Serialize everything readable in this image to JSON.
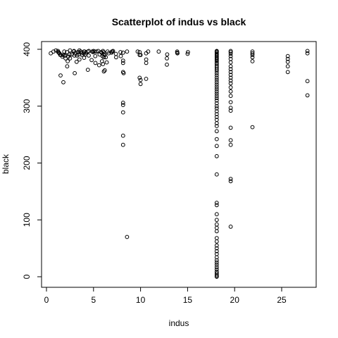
{
  "chart_data": {
    "type": "scatter",
    "title": "Scatterplot of indus vs black",
    "xlabel": "indus",
    "ylabel": "black",
    "xlim": [
      0,
      28
    ],
    "ylim": [
      0,
      400
    ],
    "x_ticks": [
      0,
      5,
      10,
      15,
      20,
      25
    ],
    "y_ticks": [
      0,
      100,
      200,
      300,
      400
    ],
    "grid": false,
    "marker": "open-circle",
    "point_color": "#000000",
    "series": [
      {
        "points": [
          [
            0.46,
            393
          ],
          [
            0.74,
            396
          ],
          [
            1.22,
            397
          ],
          [
            1.25,
            395
          ],
          [
            1.38,
            393
          ],
          [
            1.47,
            390
          ],
          [
            1.52,
            390
          ],
          [
            1.69,
            387
          ],
          [
            1.89,
            396
          ],
          [
            1.91,
            389
          ],
          [
            2.02,
            389
          ],
          [
            2.03,
            384
          ],
          [
            2.18,
            395
          ],
          [
            2.25,
            379
          ],
          [
            2.31,
            387
          ],
          [
            2.46,
            391
          ],
          [
            2.68,
            391
          ],
          [
            2.89,
            396
          ],
          [
            2.93,
            397
          ],
          [
            3.24,
            389
          ],
          [
            3.41,
            391
          ],
          [
            3.44,
            395
          ],
          [
            3.64,
            396
          ],
          [
            3.75,
            393
          ],
          [
            3.78,
            390
          ],
          [
            3.97,
            393
          ],
          [
            4.05,
            396
          ],
          [
            4.15,
            391
          ],
          [
            4.39,
            396
          ],
          [
            4.49,
            389
          ],
          [
            4.86,
            396
          ],
          [
            4.95,
            395
          ],
          [
            5.13,
            396
          ],
          [
            5.19,
            388
          ],
          [
            5.32,
            396
          ],
          [
            5.64,
            391
          ],
          [
            5.86,
            394
          ],
          [
            5.96,
            388
          ],
          [
            6.06,
            391
          ],
          [
            6.07,
            395
          ],
          [
            6.09,
            386
          ],
          [
            6.2,
            390
          ],
          [
            6.41,
            377
          ],
          [
            6.91,
            394
          ],
          [
            6.96,
            396
          ],
          [
            7.07,
            397
          ],
          [
            7.38,
            392
          ],
          [
            7.87,
            395
          ],
          [
            8.14,
            394
          ],
          [
            8.56,
            396
          ],
          [
            9.69,
            396
          ],
          [
            9.9,
            395
          ],
          [
            10.01,
            390
          ],
          [
            10.59,
            393
          ],
          [
            10.81,
            396
          ],
          [
            11.93,
            396
          ],
          [
            12.83,
            391
          ],
          [
            13.89,
            396
          ],
          [
            13.92,
            393
          ],
          [
            15.04,
            395
          ],
          [
            1.32,
            394
          ],
          [
            1.76,
            390
          ],
          [
            2.97,
            389
          ],
          [
            3.33,
            395
          ],
          [
            4.0,
            396
          ],
          [
            5.0,
            397
          ],
          [
            6.0,
            397
          ],
          [
            7.0,
            396
          ],
          [
            1.0,
            398
          ],
          [
            2.5,
            398
          ],
          [
            3.5,
            398
          ],
          [
            4.5,
            397
          ],
          [
            5.5,
            397
          ],
          [
            6.5,
            396
          ],
          [
            3.0,
            393
          ],
          [
            4.2,
            394
          ],
          [
            5.8,
            395
          ],
          [
            6.6,
            393
          ],
          [
            1.5,
            354
          ],
          [
            1.8,
            342
          ],
          [
            2.2,
            370
          ],
          [
            2.5,
            384
          ],
          [
            3.0,
            358
          ],
          [
            3.2,
            378
          ],
          [
            3.5,
            382
          ],
          [
            4.0,
            385
          ],
          [
            4.4,
            364
          ],
          [
            4.8,
            381
          ],
          [
            5.2,
            376
          ],
          [
            5.6,
            372
          ],
          [
            5.9,
            379
          ],
          [
            6.0,
            374
          ],
          [
            6.2,
            363
          ],
          [
            6.1,
            361
          ],
          [
            6.3,
            386
          ],
          [
            7.4,
            386
          ],
          [
            7.9,
            388
          ],
          [
            8.14,
            380
          ],
          [
            8.14,
            376
          ],
          [
            8.14,
            360
          ],
          [
            8.2,
            358
          ],
          [
            8.14,
            306
          ],
          [
            8.14,
            302
          ],
          [
            8.14,
            289
          ],
          [
            8.14,
            248
          ],
          [
            8.14,
            232
          ],
          [
            8.56,
            70
          ],
          [
            9.9,
            390
          ],
          [
            9.9,
            350
          ],
          [
            10.0,
            339
          ],
          [
            10.0,
            346
          ],
          [
            10.6,
            382
          ],
          [
            10.6,
            376
          ],
          [
            10.59,
            348
          ],
          [
            12.8,
            384
          ],
          [
            12.8,
            373
          ],
          [
            13.9,
            394
          ],
          [
            15.0,
            392
          ],
          [
            18.1,
            397
          ],
          [
            18.1,
            396
          ],
          [
            18.1,
            395
          ],
          [
            18.1,
            393
          ],
          [
            18.1,
            391
          ],
          [
            18.1,
            389
          ],
          [
            18.1,
            387
          ],
          [
            18.1,
            385
          ],
          [
            18.1,
            383
          ],
          [
            18.1,
            381
          ],
          [
            18.1,
            379
          ],
          [
            18.1,
            376
          ],
          [
            18.1,
            374
          ],
          [
            18.1,
            371
          ],
          [
            18.1,
            368
          ],
          [
            18.1,
            365
          ],
          [
            18.1,
            362
          ],
          [
            18.1,
            358
          ],
          [
            18.1,
            354
          ],
          [
            18.1,
            350
          ],
          [
            18.1,
            346
          ],
          [
            18.1,
            342
          ],
          [
            18.1,
            338
          ],
          [
            18.1,
            334
          ],
          [
            18.1,
            330
          ],
          [
            18.1,
            326
          ],
          [
            18.1,
            322
          ],
          [
            18.1,
            318
          ],
          [
            18.1,
            314
          ],
          [
            18.1,
            310
          ],
          [
            18.1,
            305
          ],
          [
            18.1,
            300
          ],
          [
            18.1,
            296
          ],
          [
            18.1,
            291
          ],
          [
            18.1,
            286
          ],
          [
            18.1,
            281
          ],
          [
            18.1,
            276
          ],
          [
            18.1,
            270
          ],
          [
            18.1,
            265
          ],
          [
            18.1,
            256
          ],
          [
            18.1,
            242
          ],
          [
            18.1,
            230
          ],
          [
            18.1,
            212
          ],
          [
            18.1,
            180
          ],
          [
            18.1,
            130
          ],
          [
            18.1,
            126
          ],
          [
            18.1,
            110
          ],
          [
            18.1,
            100
          ],
          [
            18.1,
            92
          ],
          [
            18.1,
            86
          ],
          [
            18.1,
            80
          ],
          [
            18.1,
            68
          ],
          [
            18.1,
            62
          ],
          [
            18.1,
            55
          ],
          [
            18.1,
            50
          ],
          [
            18.1,
            45
          ],
          [
            18.1,
            40
          ],
          [
            18.1,
            34
          ],
          [
            18.1,
            29
          ],
          [
            18.1,
            25
          ],
          [
            18.1,
            21
          ],
          [
            18.1,
            17
          ],
          [
            18.1,
            13
          ],
          [
            18.1,
            9
          ],
          [
            18.1,
            6
          ],
          [
            18.1,
            3
          ],
          [
            18.1,
            1
          ],
          [
            18.1,
            0
          ],
          [
            19.58,
            397
          ],
          [
            19.58,
            395
          ],
          [
            19.58,
            392
          ],
          [
            19.58,
            388
          ],
          [
            19.58,
            383
          ],
          [
            19.58,
            377
          ],
          [
            19.58,
            370
          ],
          [
            19.58,
            365
          ],
          [
            19.58,
            360
          ],
          [
            19.58,
            355
          ],
          [
            19.58,
            350
          ],
          [
            19.58,
            345
          ],
          [
            19.58,
            340
          ],
          [
            19.58,
            333
          ],
          [
            19.58,
            326
          ],
          [
            19.58,
            318
          ],
          [
            19.58,
            307
          ],
          [
            19.58,
            297
          ],
          [
            19.58,
            292
          ],
          [
            19.58,
            262
          ],
          [
            19.58,
            240
          ],
          [
            19.58,
            232
          ],
          [
            19.58,
            172
          ],
          [
            19.58,
            168
          ],
          [
            19.58,
            88
          ],
          [
            21.89,
            396
          ],
          [
            21.89,
            393
          ],
          [
            21.89,
            390
          ],
          [
            21.89,
            386
          ],
          [
            21.89,
            379
          ],
          [
            21.89,
            263
          ],
          [
            25.65,
            388
          ],
          [
            25.65,
            383
          ],
          [
            25.65,
            378
          ],
          [
            25.65,
            370
          ],
          [
            25.65,
            360
          ],
          [
            27.74,
            397
          ],
          [
            27.74,
            393
          ],
          [
            27.74,
            344
          ],
          [
            27.74,
            319
          ]
        ]
      }
    ]
  }
}
